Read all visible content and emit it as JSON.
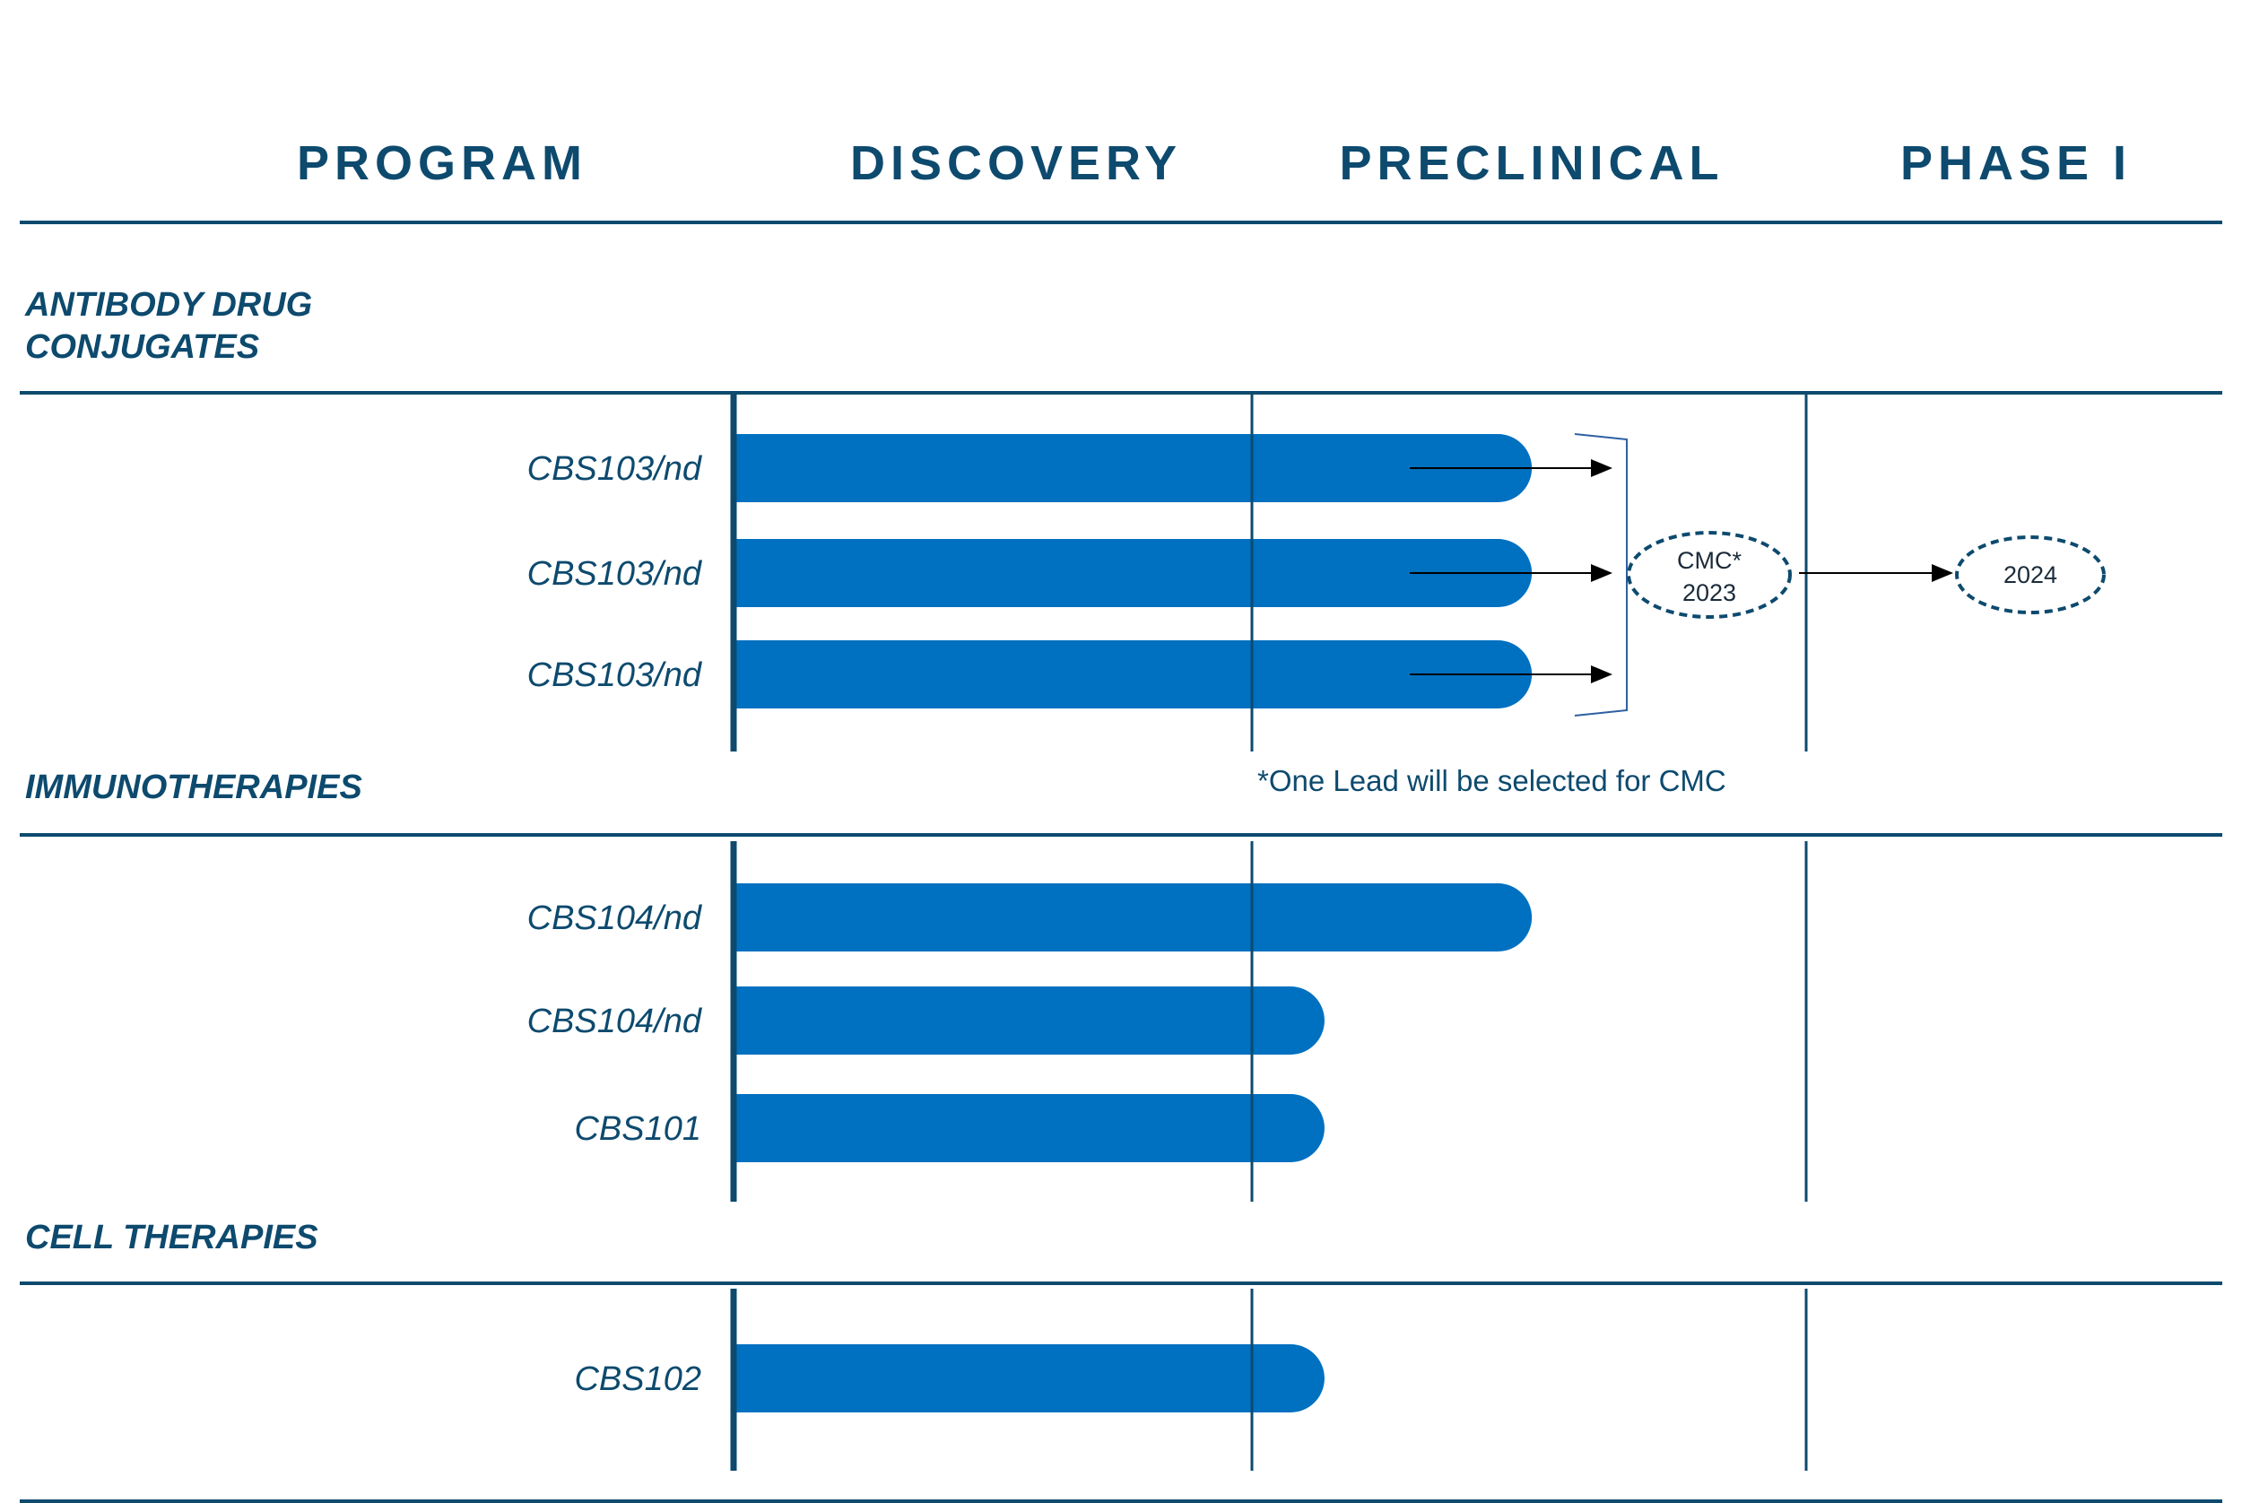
{
  "chart_data": {
    "type": "bar",
    "title": "",
    "stages": [
      "DISCOVERY",
      "PRECLINICAL",
      "PHASE I"
    ],
    "header": {
      "program_label": "PROGRAM"
    },
    "groups": [
      {
        "name_lines": [
          "ANTIBODY DRUG",
          "CONJUGATES"
        ],
        "programs": [
          {
            "name": "CBS103/nd",
            "progress": 1.54,
            "arrow": true
          },
          {
            "name": "CBS103/nd",
            "progress": 1.54,
            "arrow": true
          },
          {
            "name": "CBS103/nd",
            "progress": 1.54,
            "arrow": true
          }
        ]
      },
      {
        "name_lines": [
          "IMMUNOTHERAPIES"
        ],
        "programs": [
          {
            "name": "CBS104/nd",
            "progress": 1.54,
            "arrow": false
          },
          {
            "name": "CBS104/nd",
            "progress": 1.14,
            "arrow": false
          },
          {
            "name": "CBS101",
            "progress": 1.14,
            "arrow": false
          }
        ]
      },
      {
        "name_lines": [
          "CELL THERAPIES"
        ],
        "programs": [
          {
            "name": "CBS102",
            "progress": 1.14,
            "arrow": false
          }
        ]
      }
    ],
    "milestones": [
      {
        "lines": [
          "CMC*",
          "2023"
        ]
      },
      {
        "lines": [
          "2024"
        ]
      }
    ],
    "footnote": "*One Lead will be selected for CMC",
    "colors": {
      "bar": "#0070c0",
      "text": "#0d4a6e",
      "line": "#0d4a6e",
      "arrow": "#000000",
      "bracket": "#2e5fa3"
    },
    "xlabel": "",
    "ylabel": ""
  }
}
